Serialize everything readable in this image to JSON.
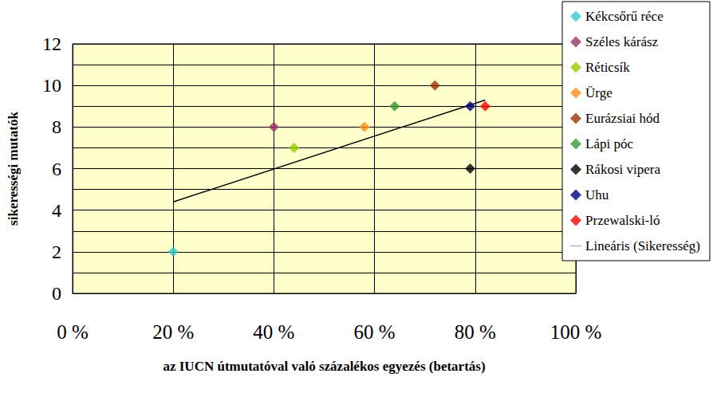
{
  "chart_data": {
    "type": "scatter",
    "x_label": "az IUCN útmutatóval való százalékos egyezés (betartás)",
    "y_label": "sikerességi mutatók",
    "xlim": [
      0,
      100
    ],
    "xticks": [
      {
        "value": 0,
        "label": "0 %"
      },
      {
        "value": 20,
        "label": "20 %"
      },
      {
        "value": 40,
        "label": "40 %"
      },
      {
        "value": 60,
        "label": "60 %"
      },
      {
        "value": 80,
        "label": "80 %"
      },
      {
        "value": 100,
        "label": "100 %"
      }
    ],
    "ylim": [
      0,
      12
    ],
    "yticks": [
      0,
      2,
      4,
      6,
      8,
      10,
      12
    ],
    "grid": true,
    "legend": "right",
    "series": [
      {
        "name": "Kékcsőrű réce",
        "color": "#33cccc",
        "marker": "diamond",
        "x": [
          20
        ],
        "values": [
          2
        ]
      },
      {
        "name": "Széles kárász",
        "color": "#993366",
        "marker": "diamond",
        "x": [
          40
        ],
        "values": [
          8
        ]
      },
      {
        "name": "Réticsík",
        "color": "#99cc00",
        "marker": "diamond",
        "x": [
          44
        ],
        "values": [
          7
        ]
      },
      {
        "name": "Ürge",
        "color": "#ff8c1a",
        "marker": "diamond",
        "x": [
          58
        ],
        "values": [
          8
        ]
      },
      {
        "name": "Eurázsiai hód",
        "color": "#993300",
        "marker": "diamond",
        "x": [
          72
        ],
        "values": [
          10
        ]
      },
      {
        "name": "Lápi póc",
        "color": "#339933",
        "marker": "diamond",
        "x": [
          64
        ],
        "values": [
          9
        ]
      },
      {
        "name": "Rákosi vipera",
        "color": "#000000",
        "marker": "diamond",
        "x": [
          79
        ],
        "values": [
          6
        ]
      },
      {
        "name": "Uhu",
        "color": "#000080",
        "marker": "diamond",
        "x": [
          79
        ],
        "values": [
          9
        ]
      },
      {
        "name": "Przewalski-ló",
        "color": "#ff0000",
        "marker": "diamond",
        "x": [
          82
        ],
        "values": [
          9
        ]
      },
      {
        "name": "Lineáris (Sikeresség)",
        "type": "line",
        "color": "#000000",
        "line_style": "solid",
        "x": [
          20,
          82
        ],
        "values": [
          4.4,
          9.3
        ]
      }
    ]
  }
}
